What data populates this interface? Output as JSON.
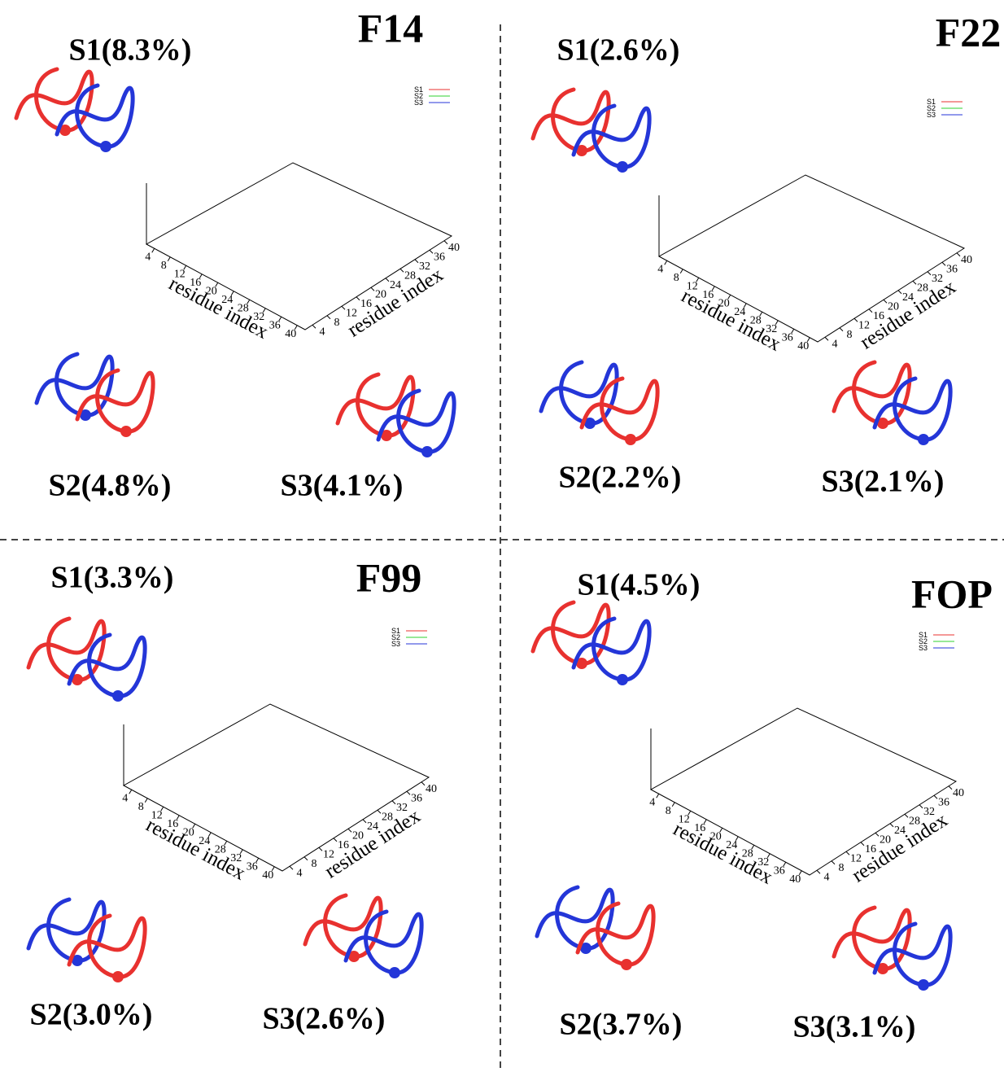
{
  "panels": [
    {
      "title": "F14",
      "structures": [
        "S1(8.3%)",
        "S2(4.8%)",
        "S3(4.1%)"
      ],
      "legend": [
        {
          "name": "S1",
          "color": "#e8312f"
        },
        {
          "name": "S2",
          "color": "#2fd02f"
        },
        {
          "name": "S3",
          "color": "#2436d8"
        }
      ],
      "x_label": "residue index",
      "y_label": "residue index",
      "xticks": [
        4,
        8,
        12,
        16,
        20,
        24,
        28,
        32,
        36,
        40
      ],
      "yticks": [
        4,
        8,
        12,
        16,
        20,
        24,
        28,
        32,
        36,
        40
      ]
    },
    {
      "title": "F22",
      "structures": [
        "S1(2.6%)",
        "S2(2.2%)",
        "S3(2.1%)"
      ],
      "legend": [
        {
          "name": "S1",
          "color": "#e8312f"
        },
        {
          "name": "S2",
          "color": "#2fd02f"
        },
        {
          "name": "S3",
          "color": "#2436d8"
        }
      ],
      "x_label": "residue index",
      "y_label": "residue index",
      "xticks": [
        4,
        8,
        12,
        16,
        20,
        24,
        28,
        32,
        36,
        40
      ],
      "yticks": [
        4,
        8,
        12,
        16,
        20,
        24,
        28,
        32,
        36,
        40
      ]
    },
    {
      "title": "F99",
      "structures": [
        "S1(3.3%)",
        "S2(3.0%)",
        "S3(2.6%)"
      ],
      "legend": [
        {
          "name": "S1",
          "color": "#e8312f"
        },
        {
          "name": "S2",
          "color": "#2fd02f"
        },
        {
          "name": "S3",
          "color": "#2436d8"
        }
      ],
      "x_label": "residue index",
      "y_label": "residue index",
      "xticks": [
        4,
        8,
        12,
        16,
        20,
        24,
        28,
        32,
        36,
        40
      ],
      "yticks": [
        4,
        8,
        12,
        16,
        20,
        24,
        28,
        32,
        36,
        40
      ]
    },
    {
      "title": "FOP",
      "structures": [
        "S1(4.5%)",
        "S2(3.7%)",
        "S3(3.1%)"
      ],
      "legend": [
        {
          "name": "S1",
          "color": "#e8312f"
        },
        {
          "name": "S2",
          "color": "#2fd02f"
        },
        {
          "name": "S3",
          "color": "#2436d8"
        }
      ],
      "x_label": "residue index",
      "y_label": "residue index",
      "xticks": [
        4,
        8,
        12,
        16,
        20,
        24,
        28,
        32,
        36,
        40
      ],
      "yticks": [
        4,
        8,
        12,
        16,
        20,
        24,
        28,
        32,
        36,
        40
      ]
    }
  ]
}
